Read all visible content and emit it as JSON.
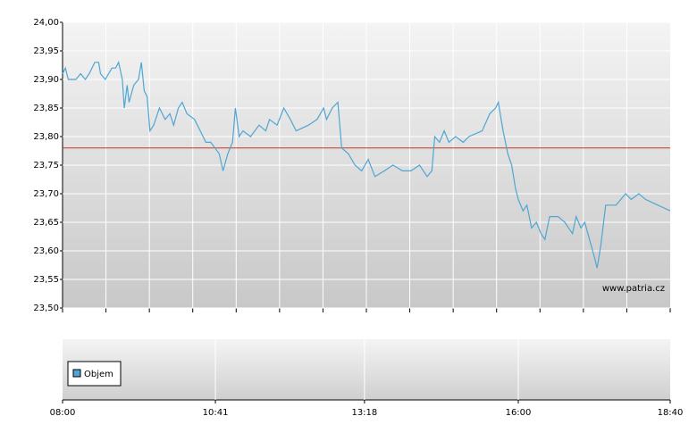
{
  "chart_data": {
    "type": "line",
    "x": [
      "08:00",
      "08:03",
      "08:06",
      "08:14",
      "08:19",
      "08:24",
      "08:28",
      "08:34",
      "08:38",
      "08:40",
      "08:45",
      "08:52",
      "08:56",
      "08:59",
      "09:03",
      "09:05",
      "09:08",
      "09:10",
      "09:15",
      "09:20",
      "09:23",
      "09:26",
      "09:29",
      "09:32",
      "09:36",
      "09:42",
      "09:48",
      "09:53",
      "09:57",
      "10:02",
      "10:06",
      "10:11",
      "10:19",
      "10:25",
      "10:31",
      "10:36",
      "10:45",
      "10:49",
      "10:54",
      "10:59",
      "11:02",
      "11:06",
      "11:10",
      "11:18",
      "11:27",
      "11:34",
      "11:38",
      "11:46",
      "11:53",
      "12:00",
      "12:06",
      "12:19",
      "12:28",
      "12:35",
      "12:38",
      "12:44",
      "12:50",
      "12:54",
      "13:01",
      "13:08",
      "13:15",
      "13:22",
      "13:29",
      "13:39",
      "13:48",
      "13:58",
      "14:07",
      "14:16",
      "14:24",
      "14:29",
      "14:32",
      "14:37",
      "14:42",
      "14:47",
      "14:54",
      "15:02",
      "15:08",
      "15:22",
      "15:30",
      "15:36",
      "15:39",
      "15:44",
      "15:49",
      "15:53",
      "15:57",
      "16:00",
      "16:05",
      "16:09",
      "16:14",
      "16:19",
      "16:24",
      "16:28",
      "16:33",
      "16:42",
      "16:49",
      "16:57",
      "17:01",
      "17:06",
      "17:10",
      "17:15",
      "17:20",
      "17:23",
      "17:27",
      "17:32",
      "17:43",
      "17:53",
      "17:59",
      "18:07",
      "18:14",
      "18:40"
    ],
    "values": [
      23.91,
      23.92,
      23.9,
      23.9,
      23.91,
      23.9,
      23.91,
      23.93,
      23.93,
      23.91,
      23.9,
      23.92,
      23.92,
      23.93,
      23.9,
      23.85,
      23.89,
      23.86,
      23.89,
      23.9,
      23.93,
      23.88,
      23.87,
      23.81,
      23.82,
      23.85,
      23.83,
      23.84,
      23.82,
      23.85,
      23.86,
      23.84,
      23.83,
      23.81,
      23.79,
      23.79,
      23.77,
      23.74,
      23.77,
      23.79,
      23.85,
      23.8,
      23.81,
      23.8,
      23.82,
      23.81,
      23.83,
      23.82,
      23.85,
      23.83,
      23.81,
      23.82,
      23.83,
      23.85,
      23.83,
      23.85,
      23.86,
      23.78,
      23.77,
      23.75,
      23.74,
      23.76,
      23.73,
      23.74,
      23.75,
      23.74,
      23.74,
      23.75,
      23.73,
      23.74,
      23.8,
      23.79,
      23.81,
      23.79,
      23.8,
      23.79,
      23.8,
      23.81,
      23.84,
      23.85,
      23.86,
      23.81,
      23.77,
      23.75,
      23.71,
      23.69,
      23.67,
      23.68,
      23.64,
      23.65,
      23.63,
      23.62,
      23.66,
      23.66,
      23.65,
      23.63,
      23.66,
      23.64,
      23.65,
      23.62,
      23.59,
      23.57,
      23.61,
      23.68,
      23.68,
      23.7,
      23.69,
      23.7,
      23.69,
      23.67
    ],
    "color": "#4ea6d3",
    "reference_line": 23.78,
    "reference_color": "#c0392b",
    "xlim": [
      "08:00",
      "18:40"
    ],
    "xticks": [
      "08:00",
      "10:41",
      "13:18",
      "16:00",
      "18:40"
    ],
    "ylim": [
      23.5,
      24.0
    ],
    "yticks": [
      {
        "value": 23.5,
        "label": "23,50"
      },
      {
        "value": 23.55,
        "label": "23,55"
      },
      {
        "value": 23.6,
        "label": "23,60"
      },
      {
        "value": 23.65,
        "label": "23,65"
      },
      {
        "value": 23.7,
        "label": "23,70"
      },
      {
        "value": 23.75,
        "label": "23,75"
      },
      {
        "value": 23.8,
        "label": "23,80"
      },
      {
        "value": 23.85,
        "label": "23,85"
      },
      {
        "value": 23.9,
        "label": "23,90"
      },
      {
        "value": 23.95,
        "label": "23,95"
      },
      {
        "value": 24.0,
        "label": "24,00"
      }
    ],
    "grid": true,
    "watermark": "www.patria.cz",
    "volume_legend": "Objem",
    "volume_color": "#4ea6d3"
  }
}
